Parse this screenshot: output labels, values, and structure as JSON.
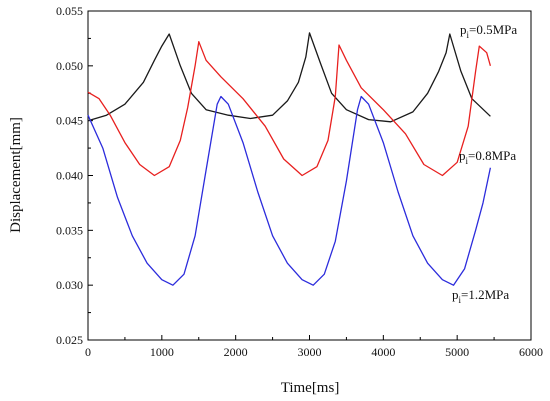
{
  "chart_data": {
    "type": "line",
    "title": "",
    "xlabel": "Time[ms]",
    "ylabel": "Displacement[mm]",
    "xlim": [
      0,
      6000
    ],
    "ylim": [
      0.025,
      0.055
    ],
    "x_ticks": [
      "0",
      "1000",
      "2000",
      "3000",
      "4000",
      "5000",
      "6000"
    ],
    "y_ticks": [
      "0.025",
      "0.030",
      "0.035",
      "0.040",
      "0.045",
      "0.050",
      "0.055"
    ],
    "grid": false,
    "legend": "none",
    "series": [
      {
        "annotation": {
          "base": "p",
          "sub": "i",
          "rest": "=0.5MPa"
        },
        "color": "#1a1a1a",
        "x": [
          0,
          250,
          500,
          750,
          900,
          1000,
          1100,
          1250,
          1400,
          1600,
          1900,
          2200,
          2500,
          2700,
          2850,
          2950,
          3000,
          3150,
          3300,
          3500,
          3800,
          4100,
          4400,
          4600,
          4750,
          4850,
          4900,
          5050,
          5200,
          5450
        ],
        "y": [
          0.045,
          0.0455,
          0.0465,
          0.0485,
          0.0505,
          0.0518,
          0.0529,
          0.05,
          0.0475,
          0.046,
          0.0455,
          0.0452,
          0.0455,
          0.0468,
          0.0485,
          0.0508,
          0.053,
          0.0502,
          0.0475,
          0.046,
          0.0451,
          0.0449,
          0.0458,
          0.0475,
          0.0495,
          0.0512,
          0.0529,
          0.0495,
          0.047,
          0.0454
        ]
      },
      {
        "annotation": {
          "base": "p",
          "sub": "i",
          "rest": "=0.8MPa"
        },
        "color": "#e8201f",
        "x": [
          0,
          150,
          300,
          500,
          700,
          900,
          1100,
          1250,
          1350,
          1450,
          1500,
          1600,
          1800,
          2100,
          2400,
          2650,
          2900,
          3100,
          3250,
          3350,
          3400,
          3500,
          3700,
          4000,
          4300,
          4550,
          4800,
          5000,
          5150,
          5250,
          5300,
          5400,
          5450
        ],
        "y": [
          0.0476,
          0.047,
          0.0455,
          0.043,
          0.041,
          0.04,
          0.0408,
          0.0432,
          0.0462,
          0.05,
          0.0522,
          0.0505,
          0.049,
          0.047,
          0.0445,
          0.0415,
          0.04,
          0.0408,
          0.0432,
          0.0472,
          0.0519,
          0.0505,
          0.048,
          0.046,
          0.0438,
          0.041,
          0.04,
          0.0412,
          0.0445,
          0.0495,
          0.0518,
          0.0512,
          0.05
        ]
      },
      {
        "annotation": {
          "base": "p",
          "sub": "i",
          "rest": "=1.2MPa"
        },
        "color": "#2c2cdc",
        "x": [
          0,
          200,
          400,
          600,
          800,
          1000,
          1150,
          1300,
          1450,
          1600,
          1750,
          1800,
          1900,
          2100,
          2300,
          2500,
          2700,
          2900,
          3050,
          3200,
          3350,
          3500,
          3650,
          3700,
          3800,
          4000,
          4200,
          4400,
          4600,
          4800,
          4950,
          5100,
          5250,
          5350,
          5450
        ],
        "y": [
          0.0455,
          0.0425,
          0.038,
          0.0345,
          0.032,
          0.0305,
          0.03,
          0.031,
          0.0345,
          0.0405,
          0.0465,
          0.0472,
          0.0465,
          0.043,
          0.0385,
          0.0345,
          0.032,
          0.0305,
          0.03,
          0.031,
          0.034,
          0.0395,
          0.046,
          0.0472,
          0.0465,
          0.043,
          0.0385,
          0.0345,
          0.032,
          0.0305,
          0.03,
          0.0315,
          0.035,
          0.0375,
          0.0407
        ]
      }
    ]
  }
}
